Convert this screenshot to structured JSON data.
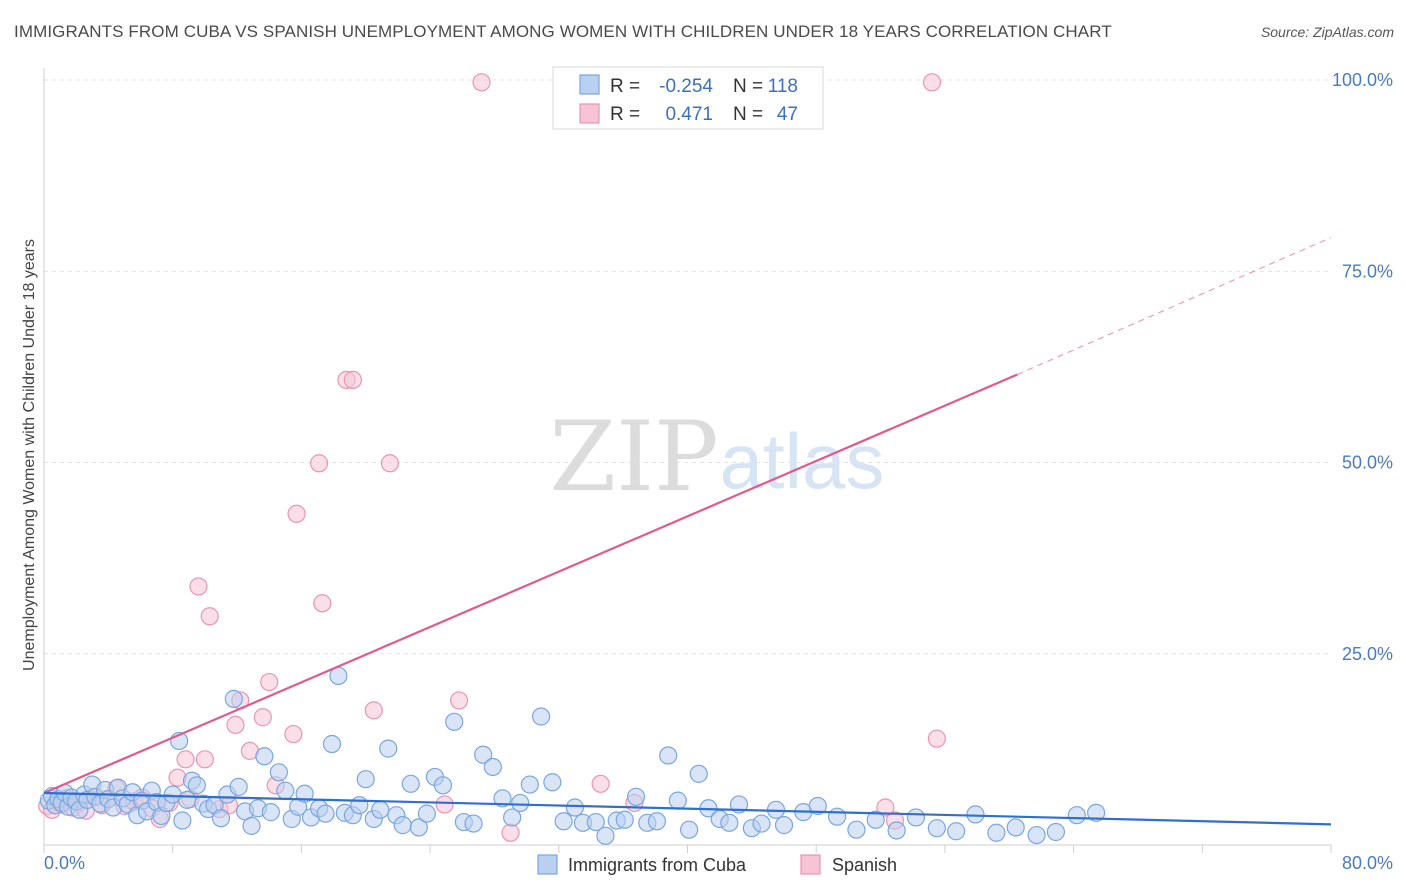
{
  "chart_data": {
    "type": "scatter",
    "title": "IMMIGRANTS FROM CUBA VS SPANISH UNEMPLOYMENT AMONG WOMEN WITH CHILDREN UNDER 18 YEARS CORRELATION CHART",
    "source": "Source: ZipAtlas.com",
    "watermark_zip": "ZIP",
    "watermark_atlas": "atlas",
    "xlabel": "",
    "ylabel": "Unemployment Among Women with Children Under 18 years",
    "xlim": [
      0,
      80
    ],
    "ylim": [
      0,
      105
    ],
    "x_tick_labels": [
      "0.0%",
      "80.0%"
    ],
    "y_ticks": [
      25,
      50,
      75,
      100
    ],
    "y_tick_labels": [
      "25.0%",
      "50.0%",
      "75.0%",
      "100.0%"
    ],
    "legend_stats": [
      {
        "r_label": "R =",
        "r_value": "-0.254",
        "n_label": "N =",
        "n_value": "118"
      },
      {
        "r_label": "R =",
        "r_value": "0.471",
        "n_label": "N =",
        "n_value": "47"
      }
    ],
    "series": [
      {
        "name": "Immigrants from Cuba",
        "color": "#7aa6e0",
        "fill": "#b9d0f0",
        "line_color": "#2f6fd0",
        "trend": {
          "x0": 0,
          "y0": 6.8,
          "x1": 80,
          "y1": 2.7
        },
        "points": [
          [
            0.3,
            5.8
          ],
          [
            0.5,
            6.4
          ],
          [
            0.7,
            5.2
          ],
          [
            0.9,
            6.0
          ],
          [
            1.1,
            5.5
          ],
          [
            1.3,
            6.8
          ],
          [
            1.5,
            5.0
          ],
          [
            1.7,
            6.2
          ],
          [
            2.0,
            5.7
          ],
          [
            2.2,
            4.6
          ],
          [
            2.5,
            6.6
          ],
          [
            2.7,
            5.9
          ],
          [
            3.0,
            7.9
          ],
          [
            3.2,
            6.3
          ],
          [
            3.5,
            5.4
          ],
          [
            3.8,
            7.2
          ],
          [
            4.0,
            6.0
          ],
          [
            4.3,
            4.9
          ],
          [
            4.6,
            7.5
          ],
          [
            4.9,
            6.1
          ],
          [
            5.2,
            5.3
          ],
          [
            5.5,
            6.9
          ],
          [
            5.8,
            3.9
          ],
          [
            6.1,
            5.8
          ],
          [
            6.4,
            4.4
          ],
          [
            6.7,
            7.1
          ],
          [
            7.0,
            5.6
          ],
          [
            7.3,
            3.8
          ],
          [
            7.6,
            5.5
          ],
          [
            8.0,
            6.6
          ],
          [
            8.4,
            13.6
          ],
          [
            8.6,
            3.2
          ],
          [
            8.9,
            5.9
          ],
          [
            9.2,
            8.4
          ],
          [
            9.5,
            7.8
          ],
          [
            9.9,
            5.4
          ],
          [
            10.2,
            4.7
          ],
          [
            10.6,
            5.2
          ],
          [
            11.0,
            3.5
          ],
          [
            11.4,
            6.6
          ],
          [
            11.8,
            19.1
          ],
          [
            12.1,
            7.6
          ],
          [
            12.5,
            4.4
          ],
          [
            12.9,
            2.5
          ],
          [
            13.3,
            4.8
          ],
          [
            13.7,
            11.6
          ],
          [
            14.1,
            4.3
          ],
          [
            14.6,
            9.5
          ],
          [
            15.0,
            7.1
          ],
          [
            15.4,
            3.4
          ],
          [
            15.8,
            5.0
          ],
          [
            16.2,
            6.7
          ],
          [
            16.6,
            3.6
          ],
          [
            17.1,
            4.8
          ],
          [
            17.5,
            4.1
          ],
          [
            17.9,
            13.2
          ],
          [
            18.3,
            22.1
          ],
          [
            18.7,
            4.2
          ],
          [
            19.2,
            3.9
          ],
          [
            19.6,
            5.2
          ],
          [
            20.0,
            8.6
          ],
          [
            20.5,
            3.4
          ],
          [
            20.9,
            4.6
          ],
          [
            21.4,
            12.6
          ],
          [
            21.9,
            3.9
          ],
          [
            22.3,
            2.6
          ],
          [
            22.8,
            8.0
          ],
          [
            23.3,
            2.3
          ],
          [
            23.8,
            4.1
          ],
          [
            24.3,
            8.9
          ],
          [
            24.8,
            7.8
          ],
          [
            25.5,
            16.1
          ],
          [
            26.1,
            3.0
          ],
          [
            26.7,
            2.8
          ],
          [
            27.3,
            11.8
          ],
          [
            27.9,
            10.2
          ],
          [
            28.5,
            6.1
          ],
          [
            29.1,
            3.6
          ],
          [
            29.6,
            5.5
          ],
          [
            30.2,
            7.9
          ],
          [
            30.9,
            16.8
          ],
          [
            31.6,
            8.2
          ],
          [
            32.3,
            3.1
          ],
          [
            33.0,
            4.9
          ],
          [
            33.5,
            2.9
          ],
          [
            34.3,
            3.0
          ],
          [
            34.9,
            1.2
          ],
          [
            35.6,
            3.2
          ],
          [
            36.1,
            3.3
          ],
          [
            36.8,
            6.3
          ],
          [
            37.5,
            2.9
          ],
          [
            38.1,
            3.1
          ],
          [
            38.8,
            11.7
          ],
          [
            39.4,
            5.8
          ],
          [
            40.1,
            2.0
          ],
          [
            40.7,
            9.3
          ],
          [
            41.3,
            4.8
          ],
          [
            42.0,
            3.4
          ],
          [
            42.6,
            2.9
          ],
          [
            43.2,
            5.3
          ],
          [
            44.0,
            2.2
          ],
          [
            44.6,
            2.8
          ],
          [
            45.5,
            4.6
          ],
          [
            46.0,
            2.6
          ],
          [
            47.2,
            4.3
          ],
          [
            48.1,
            5.1
          ],
          [
            49.3,
            3.7
          ],
          [
            50.5,
            2.0
          ],
          [
            51.7,
            3.3
          ],
          [
            53.0,
            1.9
          ],
          [
            54.2,
            3.6
          ],
          [
            55.5,
            2.2
          ],
          [
            56.7,
            1.8
          ],
          [
            57.9,
            4.0
          ],
          [
            59.2,
            1.6
          ],
          [
            60.4,
            2.3
          ],
          [
            61.7,
            1.3
          ],
          [
            62.9,
            1.7
          ],
          [
            64.2,
            3.9
          ],
          [
            65.4,
            4.2
          ]
        ]
      },
      {
        "name": "Spanish",
        "color": "#eb94b3",
        "fill": "#f6c4d5",
        "line_color": "#e05a8d",
        "trend": {
          "x0": 0,
          "y0": 6.8,
          "x1": 60.5,
          "y1": 61.5,
          "dash_x1": 80,
          "dash_y1": 79.4
        },
        "points": [
          [
            0.2,
            5.1
          ],
          [
            0.5,
            4.6
          ],
          [
            0.8,
            5.8
          ],
          [
            1.1,
            5.3
          ],
          [
            1.4,
            6.1
          ],
          [
            1.8,
            4.9
          ],
          [
            2.2,
            5.6
          ],
          [
            2.6,
            4.5
          ],
          [
            3.1,
            6.3
          ],
          [
            3.6,
            5.2
          ],
          [
            4.0,
            6.0
          ],
          [
            4.5,
            7.4
          ],
          [
            5.0,
            5.1
          ],
          [
            5.6,
            5.7
          ],
          [
            6.1,
            6.2
          ],
          [
            6.7,
            4.8
          ],
          [
            7.2,
            3.4
          ],
          [
            7.8,
            5.5
          ],
          [
            8.3,
            8.8
          ],
          [
            8.8,
            11.2
          ],
          [
            9.1,
            6.0
          ],
          [
            9.6,
            33.8
          ],
          [
            10.0,
            11.2
          ],
          [
            10.3,
            29.9
          ],
          [
            10.9,
            4.7
          ],
          [
            11.5,
            5.2
          ],
          [
            11.9,
            15.7
          ],
          [
            12.2,
            18.9
          ],
          [
            12.8,
            12.3
          ],
          [
            13.6,
            16.7
          ],
          [
            14.0,
            21.3
          ],
          [
            14.4,
            7.8
          ],
          [
            15.5,
            14.5
          ],
          [
            15.7,
            43.3
          ],
          [
            17.1,
            49.9
          ],
          [
            17.3,
            31.6
          ],
          [
            18.8,
            60.8
          ],
          [
            19.2,
            60.8
          ],
          [
            20.5,
            17.6
          ],
          [
            21.5,
            49.9
          ],
          [
            24.9,
            5.3
          ],
          [
            25.8,
            18.9
          ],
          [
            27.2,
            99.7
          ],
          [
            29.0,
            1.6
          ],
          [
            34.6,
            8.0
          ],
          [
            36.7,
            5.5
          ],
          [
            52.3,
            4.9
          ],
          [
            52.9,
            3.2
          ],
          [
            55.5,
            13.9
          ],
          [
            55.2,
            99.7
          ]
        ]
      }
    ]
  }
}
